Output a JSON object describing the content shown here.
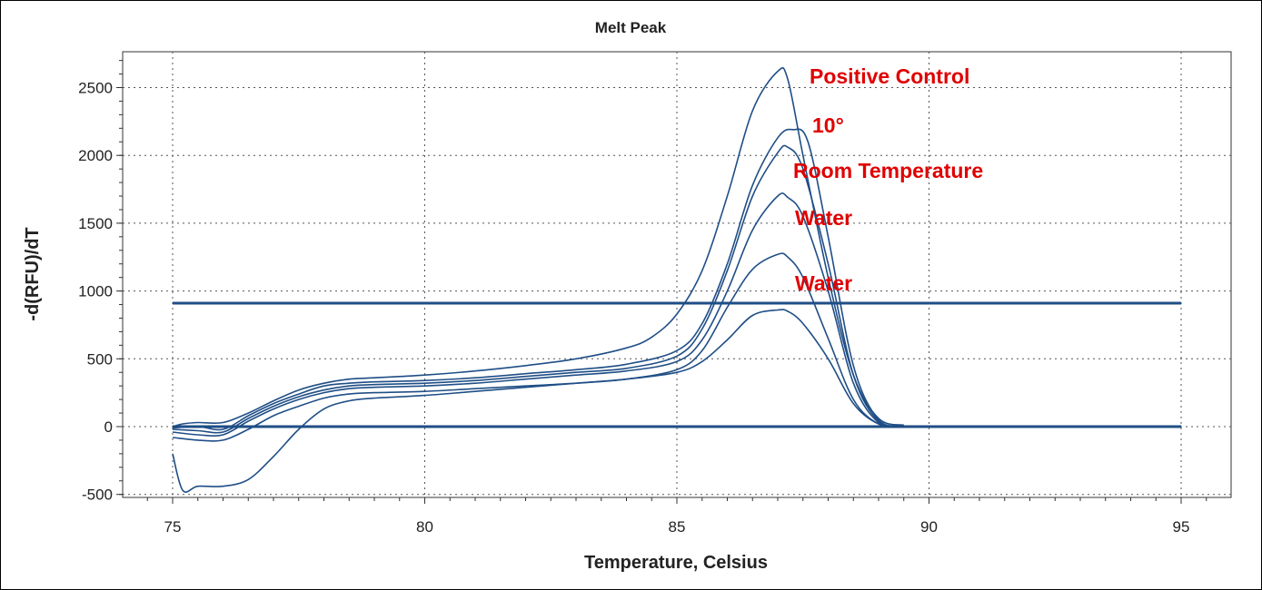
{
  "chart_data": {
    "type": "line",
    "title": "Melt Peak",
    "xlabel": "Temperature, Celsius",
    "ylabel": "-d(RFU)/dT",
    "xlim": [
      74.2,
      96.0
    ],
    "ylim": [
      -520,
      2800
    ],
    "xticks": [
      "75",
      "80",
      "85",
      "90",
      "95"
    ],
    "yticks": [
      "2500",
      "2000",
      "1500",
      "1000",
      "500",
      "0",
      "-500"
    ],
    "grid": "dotted",
    "line_color": "#1f4e86",
    "annotation_color": "#e00000",
    "threshold_lines": [
      {
        "y": 910,
        "x": [
          75,
          95
        ]
      },
      {
        "y": 0,
        "x": [
          75,
          95
        ]
      }
    ],
    "series": [
      {
        "x": [
          75,
          75.2,
          75.5,
          76,
          76.5,
          77,
          77.5,
          78,
          78.5,
          79,
          80,
          81,
          82,
          83,
          84,
          84.5,
          85,
          85.5,
          86,
          86.5,
          87,
          87.2,
          87.5,
          88,
          88.5,
          89,
          89.5
        ],
        "values": [
          0,
          20,
          30,
          30,
          100,
          190,
          270,
          320,
          350,
          360,
          380,
          410,
          450,
          500,
          580,
          660,
          830,
          1150,
          1700,
          2330,
          2620,
          2560,
          2000,
          1100,
          380,
          60,
          10
        ]
      },
      {
        "x": [
          75,
          75.5,
          76,
          76.5,
          77,
          77.5,
          78,
          78.5,
          79,
          80,
          81,
          82,
          83,
          84,
          85,
          85.5,
          86,
          86.5,
          87,
          87.3,
          87.6,
          88,
          88.5,
          89,
          89.5
        ],
        "values": [
          -10,
          0,
          -20,
          80,
          170,
          240,
          300,
          320,
          330,
          340,
          360,
          390,
          420,
          460,
          560,
          760,
          1200,
          1780,
          2130,
          2190,
          2100,
          1400,
          450,
          50,
          10
        ]
      },
      {
        "x": [
          75,
          75.5,
          76,
          76.5,
          77,
          77.5,
          78,
          78.5,
          79,
          80,
          81,
          82,
          83,
          84,
          85,
          85.5,
          86,
          86.5,
          87,
          87.2,
          87.5,
          88,
          88.5,
          89,
          89.5
        ],
        "values": [
          -20,
          -30,
          -40,
          60,
          150,
          220,
          270,
          300,
          310,
          320,
          340,
          370,
          400,
          430,
          520,
          720,
          1150,
          1700,
          2020,
          2060,
          1900,
          1200,
          380,
          40,
          5
        ]
      },
      {
        "x": [
          75,
          75.5,
          76,
          76.5,
          77,
          77.5,
          78,
          78.5,
          79,
          80,
          81,
          82,
          83,
          84,
          85,
          85.5,
          86,
          86.5,
          87,
          87.2,
          87.5,
          88,
          88.5,
          89,
          89.5
        ],
        "values": [
          -40,
          -60,
          -60,
          40,
          130,
          200,
          250,
          280,
          290,
          300,
          320,
          350,
          380,
          410,
          480,
          640,
          1000,
          1450,
          1700,
          1690,
          1550,
          1000,
          320,
          30,
          5
        ]
      },
      {
        "x": [
          75,
          75.5,
          76,
          76.5,
          77,
          77.5,
          78,
          78.5,
          79,
          80,
          81,
          82,
          83,
          84,
          85,
          85.5,
          86,
          86.5,
          87,
          87.2,
          87.5,
          88,
          88.5,
          89,
          89.5
        ],
        "values": [
          -80,
          -100,
          -100,
          -20,
          80,
          150,
          210,
          240,
          250,
          260,
          280,
          300,
          320,
          350,
          420,
          560,
          880,
          1160,
          1270,
          1250,
          1100,
          650,
          200,
          20,
          5
        ]
      },
      {
        "x": [
          75,
          75.2,
          75.5,
          76,
          76.5,
          77,
          77.5,
          78,
          78.5,
          79,
          80,
          81,
          82,
          83,
          84,
          85,
          85.5,
          86,
          86.5,
          87,
          87.2,
          87.5,
          88,
          88.5,
          89,
          89.5
        ],
        "values": [
          -200,
          -470,
          -440,
          -440,
          -390,
          -220,
          -20,
          130,
          190,
          210,
          230,
          260,
          290,
          320,
          350,
          400,
          480,
          640,
          820,
          860,
          850,
          760,
          500,
          170,
          20,
          5
        ]
      }
    ],
    "annotations": [
      "Positive Control",
      "10°",
      "Room Temperature",
      "Water",
      "Water"
    ]
  }
}
